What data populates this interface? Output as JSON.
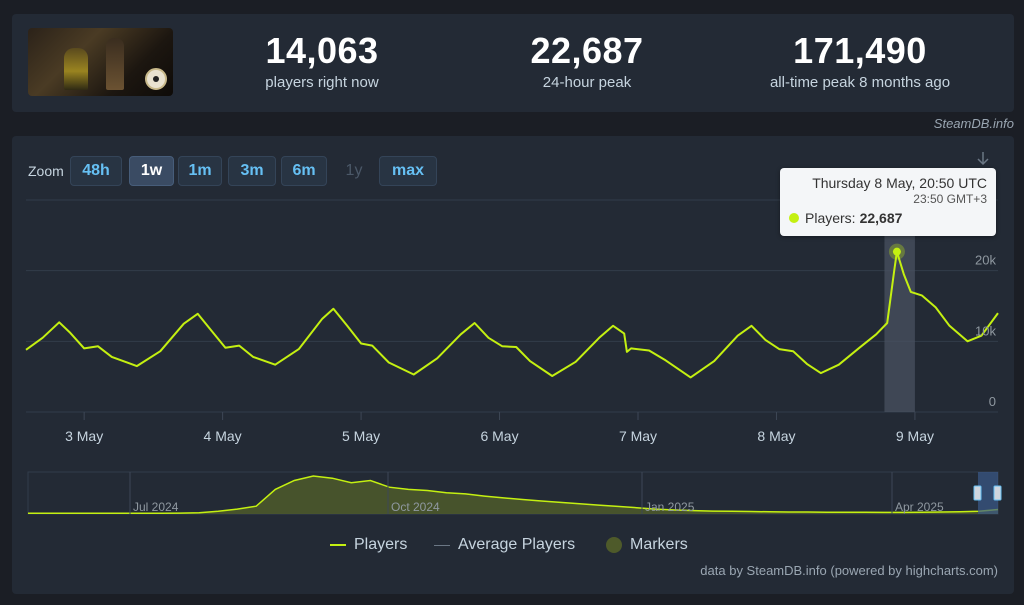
{
  "stats": [
    {
      "value": "14,063",
      "label": "players right now"
    },
    {
      "value": "22,687",
      "label": "24-hour peak"
    },
    {
      "value": "171,490",
      "label": "all-time peak 8 months ago"
    }
  ],
  "credit_top": "SteamDB.info",
  "zoom": {
    "label": "Zoom",
    "buttons": [
      {
        "label": "48h",
        "state": "normal"
      },
      {
        "label": "1w",
        "state": "active"
      },
      {
        "label": "1m",
        "state": "normal"
      },
      {
        "label": "3m",
        "state": "normal"
      },
      {
        "label": "6m",
        "state": "normal"
      },
      {
        "label": "1y",
        "state": "disabled"
      },
      {
        "label": "max",
        "state": "normal"
      }
    ]
  },
  "tooltip": {
    "title": "Thursday 8 May, 20:50 UTC",
    "subtitle": "23:50 GMT+3",
    "series_label": "Players:",
    "value": "22,687"
  },
  "legend": {
    "players": "Players",
    "average": "Average Players",
    "markers": "Markers"
  },
  "credit_bottom": "data by SteamDB.info (powered by highcharts.com)",
  "colors": {
    "players": "#c4f011",
    "average": "#6b7785",
    "marker": "#4e5a2a",
    "link": "#66c0f4"
  },
  "chart_data": [
    {
      "type": "line",
      "x_ticks": [
        "3 May",
        "4 May",
        "5 May",
        "6 May",
        "7 May",
        "8 May",
        "9 May"
      ],
      "y_ticks": [
        "0",
        "10k",
        "20k"
      ],
      "ylim": [
        0,
        30000
      ],
      "xlim_days": [
        2.58,
        9.6
      ],
      "highlight_band": [
        8.78,
        9.0
      ],
      "highlight_point": {
        "x": 8.87,
        "y": 22687
      },
      "series": [
        {
          "name": "Players",
          "points": [
            [
              2.58,
              8800
            ],
            [
              2.7,
              10500
            ],
            [
              2.82,
              12700
            ],
            [
              2.9,
              11200
            ],
            [
              3.0,
              9000
            ],
            [
              3.1,
              9300
            ],
            [
              3.2,
              7800
            ],
            [
              3.38,
              6500
            ],
            [
              3.55,
              8600
            ],
            [
              3.72,
              12500
            ],
            [
              3.82,
              13900
            ],
            [
              3.92,
              11500
            ],
            [
              4.02,
              9100
            ],
            [
              4.12,
              9400
            ],
            [
              4.22,
              7800
            ],
            [
              4.38,
              6700
            ],
            [
              4.55,
              8900
            ],
            [
              4.72,
              13200
            ],
            [
              4.8,
              14600
            ],
            [
              4.9,
              12200
            ],
            [
              5.0,
              9700
            ],
            [
              5.08,
              9400
            ],
            [
              5.2,
              7000
            ],
            [
              5.38,
              5300
            ],
            [
              5.55,
              7600
            ],
            [
              5.72,
              11000
            ],
            [
              5.82,
              12600
            ],
            [
              5.92,
              10500
            ],
            [
              6.02,
              9300
            ],
            [
              6.12,
              9200
            ],
            [
              6.22,
              7200
            ],
            [
              6.38,
              5100
            ],
            [
              6.55,
              7100
            ],
            [
              6.72,
              10500
            ],
            [
              6.82,
              12200
            ],
            [
              6.9,
              11100
            ],
            [
              6.92,
              8500
            ],
            [
              6.95,
              9000
            ],
            [
              7.08,
              8700
            ],
            [
              7.2,
              7300
            ],
            [
              7.38,
              4900
            ],
            [
              7.55,
              7200
            ],
            [
              7.72,
              10800
            ],
            [
              7.82,
              12200
            ],
            [
              7.92,
              10200
            ],
            [
              8.02,
              8900
            ],
            [
              8.12,
              8600
            ],
            [
              8.22,
              6800
            ],
            [
              8.32,
              5500
            ],
            [
              8.45,
              6700
            ],
            [
              8.6,
              9100
            ],
            [
              8.72,
              11000
            ],
            [
              8.8,
              12600
            ],
            [
              8.85,
              20000
            ],
            [
              8.87,
              22687
            ],
            [
              8.92,
              19500
            ],
            [
              8.97,
              17000
            ],
            [
              9.05,
              16500
            ],
            [
              9.15,
              14800
            ],
            [
              9.25,
              12200
            ],
            [
              9.38,
              10000
            ],
            [
              9.48,
              10800
            ],
            [
              9.6,
              14000
            ]
          ]
        }
      ]
    },
    {
      "type": "area",
      "role": "navigator",
      "x_ticks": [
        "Jul 2024",
        "Oct 2024",
        "Jan 2025",
        "Apr 2025"
      ],
      "series": [
        {
          "name": "Players",
          "values": [
            3,
            3,
            3,
            3,
            3,
            3,
            3,
            3,
            4,
            6,
            12,
            22,
            35,
            110,
            150,
            170,
            160,
            140,
            150,
            120,
            110,
            105,
            95,
            90,
            80,
            72,
            65,
            58,
            52,
            46,
            40,
            34,
            28,
            22,
            18,
            15,
            13,
            12,
            11,
            10,
            9,
            9,
            8,
            8,
            8,
            7,
            7,
            8,
            9,
            10,
            12,
            20
          ]
        }
      ]
    }
  ]
}
